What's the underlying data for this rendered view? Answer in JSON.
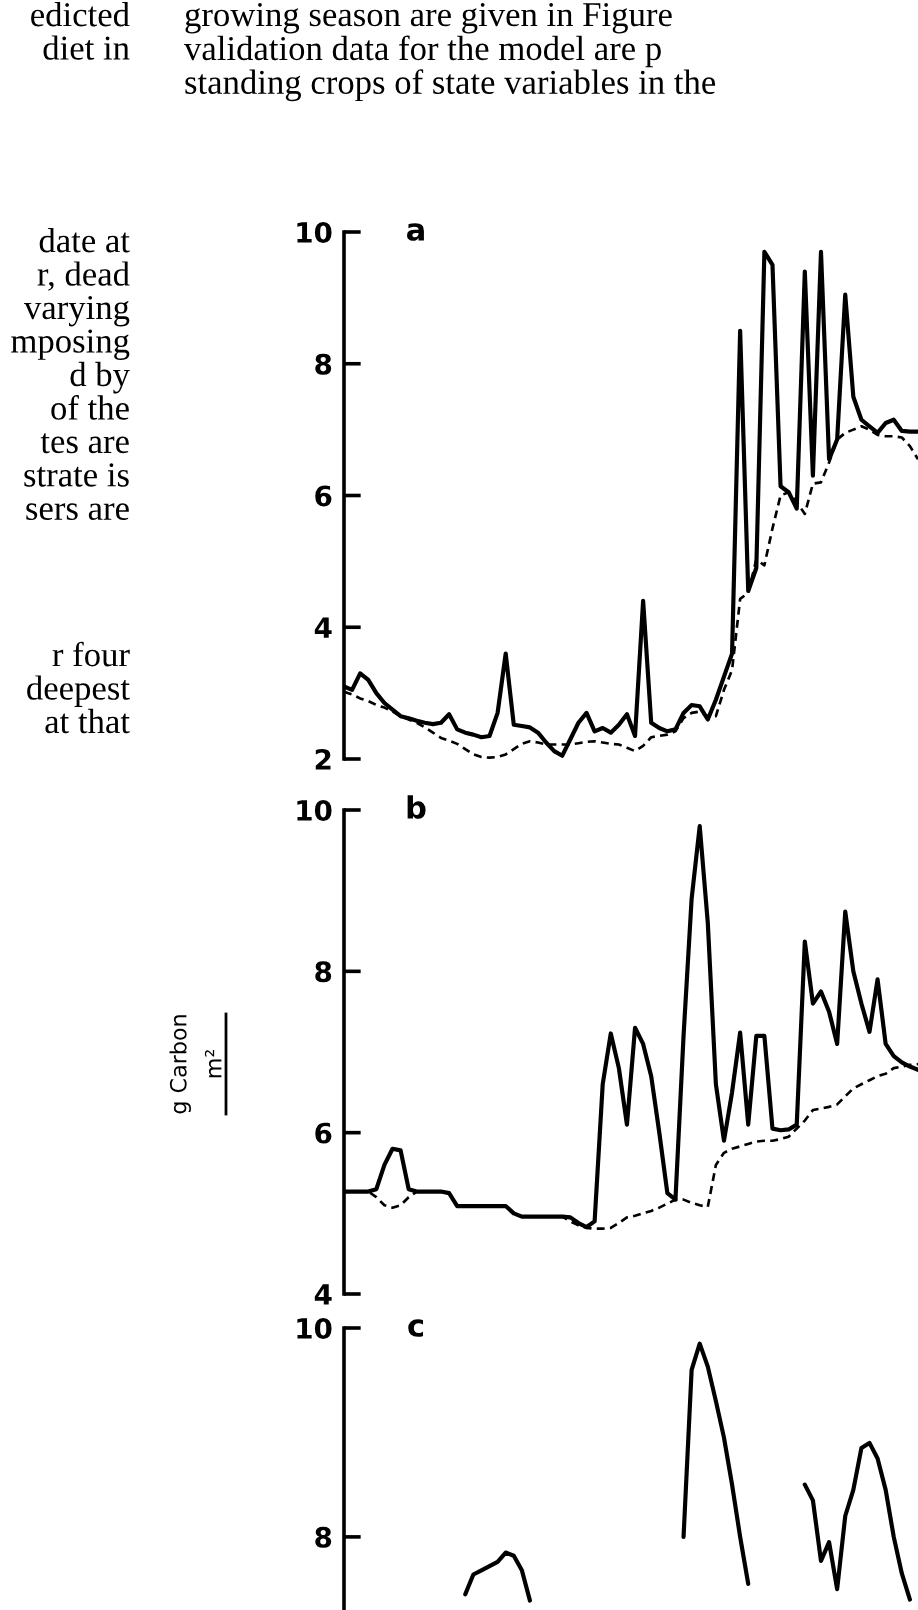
{
  "chart_data": [
    {
      "type": "line",
      "title": "a",
      "tick_labels": "y",
      "annotations": [
        "edicted\ndiet in",
        "date at\nr, dead\nvarying\nmposing\nd by\nof the\ntes are\nstrate is\nsers are",
        "r four\ndeepest\nat that",
        "growing season are given in Figure\nvalidation data for the model are p\nstanding crops of state variables in the"
      ],
      "categories": [
        null,
        null,
        null,
        null,
        null,
        null,
        null,
        null,
        null,
        null,
        null,
        null,
        null,
        null,
        null,
        null,
        null,
        null,
        null,
        null,
        null,
        null,
        null,
        null,
        null,
        null,
        null,
        null,
        null,
        null,
        null,
        null,
        null,
        null,
        null,
        null,
        null,
        null,
        null,
        null,
        null,
        null,
        null,
        null,
        null,
        null,
        null,
        null,
        null,
        null,
        null,
        null,
        null,
        null,
        null,
        null,
        null,
        null,
        null,
        null,
        null,
        null,
        null,
        null,
        null,
        null,
        null,
        null,
        null,
        null,
        null,
        null
      ],
      "ylim": [
        2,
        10
      ],
      "yticks": [
        2,
        4,
        6,
        8,
        10
      ],
      "series": [
        {
          "color": "#000000",
          "line_style": "solid",
          "values": [
            3.1,
            3.05,
            3.3,
            3.2,
            3.0,
            2.85,
            2.75,
            2.65,
            2.62,
            2.58,
            2.55,
            2.53,
            2.55,
            2.68,
            2.45,
            2.4,
            2.37,
            2.33,
            2.35,
            2.7,
            3.6,
            2.52,
            2.5,
            2.48,
            2.4,
            2.25,
            2.12,
            2.05,
            2.3,
            2.55,
            2.7,
            2.42,
            2.47,
            2.4,
            2.52,
            2.68,
            2.35,
            4.4,
            2.55,
            2.47,
            2.42,
            2.45,
            2.7,
            2.82,
            2.8,
            2.6,
            2.9,
            3.25,
            3.6,
            8.5,
            4.55,
            4.9,
            9.7,
            9.5,
            6.14,
            6.05,
            5.8,
            9.4,
            6.3,
            9.7,
            6.55,
            6.85,
            9.05,
            7.5,
            7.15,
            7.05,
            6.95,
            7.1,
            7.15,
            6.98,
            6.97,
            6.97
          ]
        },
        {
          "color": "#000000",
          "line_style": "dashed",
          "values": [
            3.02,
            2.98,
            2.92,
            2.88,
            2.82,
            2.78,
            2.72,
            2.65,
            2.6,
            2.55,
            2.48,
            2.4,
            2.32,
            2.28,
            2.23,
            2.15,
            2.07,
            2.03,
            2.02,
            2.03,
            2.07,
            2.15,
            2.23,
            2.27,
            2.25,
            2.22,
            2.22,
            2.22,
            2.22,
            2.24,
            2.26,
            2.27,
            2.25,
            2.23,
            2.22,
            2.17,
            2.12,
            2.2,
            2.33,
            2.35,
            2.37,
            2.42,
            2.62,
            2.7,
            2.72,
            2.65,
            2.65,
            3.05,
            3.35,
            4.43,
            4.52,
            5.03,
            4.94,
            5.5,
            6.0,
            6.05,
            5.9,
            5.72,
            6.18,
            6.2,
            6.5,
            6.85,
            6.95,
            7.0,
            7.05,
            7.0,
            6.92,
            6.9,
            6.9,
            6.88,
            6.75,
            6.55
          ]
        }
      ]
    },
    {
      "type": "line",
      "title": "b",
      "tick_labels": "y",
      "ylabel": "g Carbon\nm²",
      "categories": [
        null,
        null,
        null,
        null,
        null,
        null,
        null,
        null,
        null,
        null,
        null,
        null,
        null,
        null,
        null,
        null,
        null,
        null,
        null,
        null,
        null,
        null,
        null,
        null,
        null,
        null,
        null,
        null,
        null,
        null,
        null,
        null,
        null,
        null,
        null,
        null,
        null,
        null,
        null,
        null,
        null,
        null,
        null,
        null,
        null,
        null,
        null,
        null,
        null,
        null,
        null,
        null,
        null,
        null,
        null,
        null,
        null,
        null,
        null,
        null,
        null,
        null,
        null,
        null,
        null,
        null,
        null,
        null,
        null,
        null,
        null,
        null
      ],
      "ylim": [
        4,
        10
      ],
      "yticks": [
        4,
        6,
        8,
        10
      ],
      "series": [
        {
          "color": "#000000",
          "line_style": "solid",
          "values": [
            5.27,
            5.27,
            5.27,
            5.27,
            5.3,
            5.6,
            5.8,
            5.78,
            5.3,
            5.27,
            5.27,
            5.27,
            5.27,
            5.25,
            5.09,
            5.09,
            5.09,
            5.09,
            5.09,
            5.09,
            5.09,
            5.0,
            4.96,
            4.96,
            4.96,
            4.96,
            4.96,
            4.96,
            4.95,
            4.88,
            4.83,
            4.9,
            6.6,
            7.23,
            6.8,
            6.1,
            7.3,
            7.1,
            6.7,
            6.0,
            5.25,
            5.17,
            7.2,
            8.9,
            9.8,
            8.6,
            6.6,
            5.9,
            6.5,
            7.24,
            6.1,
            7.2,
            7.2,
            6.05,
            6.03,
            6.04,
            6.1,
            8.37,
            7.6,
            7.75,
            7.5,
            7.1,
            8.74,
            8.0,
            7.6,
            7.25,
            7.9,
            7.1,
            6.95,
            6.87,
            6.82,
            6.78
          ]
        },
        {
          "color": "#000000",
          "line_style": "dashed",
          "values": [
            5.27,
            5.27,
            5.27,
            5.27,
            5.2,
            5.1,
            5.07,
            5.1,
            5.2,
            5.27,
            5.27,
            5.27,
            5.27,
            5.25,
            5.09,
            5.09,
            5.09,
            5.09,
            5.09,
            5.09,
            5.09,
            5.0,
            4.96,
            4.96,
            4.96,
            4.96,
            4.96,
            4.96,
            4.9,
            4.85,
            4.82,
            4.81,
            4.81,
            4.82,
            4.88,
            4.95,
            4.97,
            5.0,
            5.03,
            5.07,
            5.12,
            5.17,
            5.17,
            5.13,
            5.1,
            5.08,
            5.6,
            5.75,
            5.8,
            5.83,
            5.86,
            5.89,
            5.9,
            5.9,
            5.92,
            5.95,
            6.05,
            6.15,
            6.28,
            6.3,
            6.32,
            6.35,
            6.45,
            6.55,
            6.6,
            6.65,
            6.7,
            6.73,
            6.8,
            6.82,
            6.84,
            6.85
          ]
        }
      ]
    },
    {
      "type": "line",
      "title": "c",
      "tick_labels": "y",
      "categories": [
        null,
        null,
        null,
        null,
        null,
        null,
        null,
        null,
        null,
        null,
        null,
        null,
        null,
        null,
        null,
        null,
        null,
        null,
        null,
        null,
        null,
        null,
        null,
        null,
        null,
        null,
        null,
        null,
        null,
        null,
        null,
        null,
        null,
        null,
        null,
        null,
        null,
        null,
        null,
        null,
        null,
        null,
        null,
        null,
        null,
        null,
        null,
        null,
        null,
        null,
        null,
        null,
        null,
        null,
        null,
        null,
        null,
        null,
        null,
        null,
        null,
        null,
        null,
        null,
        null,
        null,
        null,
        null,
        null,
        null,
        null,
        null
      ],
      "ylim": [
        7.3,
        10
      ],
      "yticks": [
        8,
        10
      ],
      "series": [
        {
          "color": "#000000",
          "line_style": "solid",
          "values": [
            null,
            null,
            null,
            null,
            null,
            null,
            null,
            null,
            null,
            null,
            null,
            null,
            null,
            null,
            null,
            7.45,
            7.64,
            7.68,
            7.72,
            7.76,
            7.85,
            7.82,
            7.68,
            7.39,
            null,
            null,
            null,
            null,
            null,
            null,
            null,
            null,
            null,
            null,
            null,
            null,
            null,
            null,
            null,
            null,
            null,
            null,
            8.0,
            9.6,
            9.85,
            9.63,
            9.3,
            8.95,
            8.5,
            8.0,
            7.55,
            null,
            null,
            null,
            null,
            null,
            null,
            8.5,
            8.35,
            7.77,
            7.95,
            7.5,
            8.2,
            8.45,
            8.85,
            8.9,
            8.75,
            8.45,
            8.0,
            7.65,
            7.4,
            null
          ]
        }
      ]
    }
  ]
}
